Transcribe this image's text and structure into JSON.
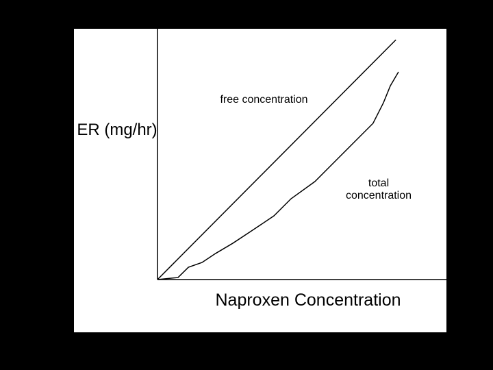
{
  "chart_data": {
    "type": "line",
    "y_label": "ER (mg/hr)",
    "x_label": "Naproxen Concentration",
    "xlim": [
      0,
      100
    ],
    "ylim": [
      0,
      100
    ],
    "series": [
      {
        "name": "free concentration",
        "color": "#000000",
        "x": [
          0,
          82.5
        ],
        "values": [
          0,
          95.6
        ]
      },
      {
        "name": "total concentration",
        "color": "#000000",
        "x": [
          0,
          7.1,
          10.7,
          15.4,
          20.1,
          26.1,
          33.2,
          40.3,
          46.2,
          54.5,
          61.6,
          68.7,
          74.6,
          78.2,
          80.6,
          83.4
        ],
        "values": [
          0,
          0.8,
          4.9,
          6.8,
          10.4,
          14.5,
          19.9,
          25.4,
          32.2,
          39.1,
          47.3,
          55.5,
          62.3,
          70.5,
          77.3,
          82.8
        ]
      }
    ]
  }
}
